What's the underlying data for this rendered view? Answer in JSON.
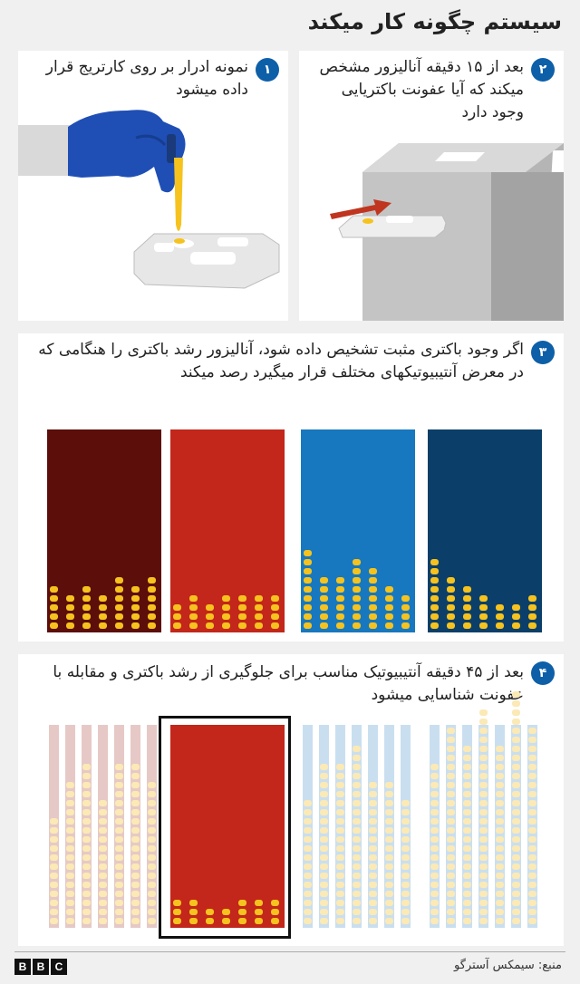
{
  "title": "سیستم چگونه کار میکند",
  "steps": [
    {
      "num": "۱",
      "text": "نمونه ادرار بر روی کارتریج قرار داده میشود"
    },
    {
      "num": "۲",
      "text": "بعد از ۱۵ دقیقه آنالیزور مشخص میکند که آیا عفونت باکتریایی وجود دارد"
    },
    {
      "num": "۳",
      "text": "اگر وجود باکتری مثبت تشخیص داده شود، آنالیزور رشد باکتری را هنگامی که در معرض آنتیبیوتیکهای مختلف قرار میگیرد رصد میکند"
    },
    {
      "num": "۴",
      "text": "بعد از ۴۵ دقیقه آنتیبیوتیک مناسب برای جلوگیری از رشد باکتری و مقابله با عفونت شناسایی میشود"
    }
  ],
  "colors": {
    "group1": "#5c0e0a",
    "group2": "#c3261a",
    "group3": "#1778bf",
    "group4": "#0b3f6a",
    "bacteria": "#f6c31e",
    "badge": "#0d5fa8"
  },
  "source": "منبع: سیمکس آسترگو",
  "logo": [
    "B",
    "B",
    "C"
  ]
}
